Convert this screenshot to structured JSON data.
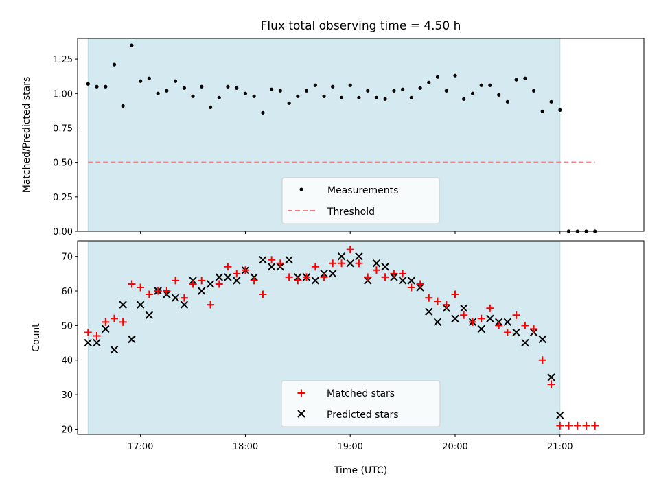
{
  "chart_data": [
    {
      "type": "scatter",
      "panel": "top",
      "title": "Flux total observing time = 4.50 h",
      "xlabel": "",
      "ylabel": "Matched/Predicted stars",
      "xlim": [
        -0.6,
        4.8
      ],
      "ylim": [
        0.0,
        1.4
      ],
      "yticks": [
        0.0,
        0.25,
        0.5,
        0.75,
        1.0,
        1.25
      ],
      "ytick_labels": [
        "0.00",
        "0.25",
        "0.50",
        "0.75",
        "1.00",
        "1.25"
      ],
      "xticks": [
        0,
        1,
        2,
        3,
        4
      ],
      "shaded_span": {
        "x_start": -0.5,
        "x_end": 4.0,
        "color": "#d4eaf0"
      },
      "legend": {
        "position": "lower-center",
        "entries": [
          "Measurements",
          "Threshold"
        ]
      },
      "series": [
        {
          "name": "Measurements",
          "marker": "dot",
          "color": "#000000",
          "x": [
            -0.5,
            -0.417,
            -0.333,
            -0.25,
            -0.167,
            -0.083,
            0.0,
            0.083,
            0.167,
            0.25,
            0.333,
            0.417,
            0.5,
            0.583,
            0.667,
            0.75,
            0.833,
            0.917,
            1.0,
            1.083,
            1.167,
            1.25,
            1.333,
            1.417,
            1.5,
            1.583,
            1.667,
            1.75,
            1.833,
            1.917,
            2.0,
            2.083,
            2.167,
            2.25,
            2.333,
            2.417,
            2.5,
            2.583,
            2.667,
            2.75,
            2.833,
            2.917,
            3.0,
            3.083,
            3.167,
            3.25,
            3.333,
            3.417,
            3.5,
            3.583,
            3.667,
            3.75,
            3.833,
            3.917,
            4.0,
            4.083,
            4.167,
            4.25,
            4.333
          ],
          "y": [
            1.07,
            1.05,
            1.05,
            1.21,
            0.91,
            1.35,
            1.09,
            1.11,
            1.0,
            1.02,
            1.09,
            1.04,
            0.98,
            1.05,
            0.9,
            0.97,
            1.05,
            1.04,
            1.0,
            0.98,
            0.86,
            1.03,
            1.02,
            0.93,
            0.98,
            1.02,
            1.06,
            0.98,
            1.05,
            0.97,
            1.06,
            0.97,
            1.02,
            0.97,
            0.96,
            1.02,
            1.03,
            0.97,
            1.04,
            1.08,
            1.12,
            1.02,
            1.13,
            0.96,
            1.0,
            1.06,
            1.06,
            0.99,
            0.94,
            1.1,
            1.11,
            1.02,
            0.87,
            0.94,
            0.88,
            0.0,
            0.0,
            0.0,
            0.0
          ]
        },
        {
          "name": "Threshold",
          "style": "dashed",
          "color": "#f08080",
          "x": [
            -0.5,
            4.333
          ],
          "y": [
            0.5,
            0.5
          ]
        }
      ]
    },
    {
      "type": "scatter",
      "panel": "bottom",
      "title": "",
      "xlabel": "Time (UTC)",
      "ylabel": "Count",
      "xlim": [
        -0.6,
        4.8
      ],
      "ylim": [
        18.5,
        74.5
      ],
      "yticks": [
        20,
        30,
        40,
        50,
        60,
        70
      ],
      "ytick_labels": [
        "20",
        "30",
        "40",
        "50",
        "60",
        "70"
      ],
      "xticks": [
        0,
        1,
        2,
        3,
        4
      ],
      "xtick_labels": [
        "17:00",
        "18:00",
        "19:00",
        "20:00",
        "21:00"
      ],
      "shaded_span": {
        "x_start": -0.5,
        "x_end": 4.0,
        "color": "#d4eaf0"
      },
      "legend": {
        "position": "lower-center",
        "entries": [
          "Matched stars",
          "Predicted stars"
        ]
      },
      "series": [
        {
          "name": "Matched stars",
          "marker": "plus",
          "color": "#ff0000",
          "x": [
            -0.5,
            -0.417,
            -0.333,
            -0.25,
            -0.167,
            -0.083,
            0.0,
            0.083,
            0.167,
            0.25,
            0.333,
            0.417,
            0.5,
            0.583,
            0.667,
            0.75,
            0.833,
            0.917,
            1.0,
            1.083,
            1.167,
            1.25,
            1.333,
            1.417,
            1.5,
            1.583,
            1.667,
            1.75,
            1.833,
            1.917,
            2.0,
            2.083,
            2.167,
            2.25,
            2.333,
            2.417,
            2.5,
            2.583,
            2.667,
            2.75,
            2.833,
            2.917,
            3.0,
            3.083,
            3.167,
            3.25,
            3.333,
            3.417,
            3.5,
            3.583,
            3.667,
            3.75,
            3.833,
            3.917,
            4.0,
            4.083,
            4.167,
            4.25,
            4.333
          ],
          "y": [
            48,
            47,
            51,
            52,
            51,
            62,
            61,
            59,
            60,
            60,
            63,
            58,
            62,
            63,
            56,
            62,
            67,
            65,
            66,
            63,
            59,
            69,
            68,
            64,
            63,
            64,
            67,
            64,
            68,
            68,
            72,
            68,
            64,
            66,
            64,
            65,
            65,
            61,
            62,
            58,
            57,
            56,
            59,
            53,
            51,
            52,
            55,
            50,
            48,
            53,
            50,
            49,
            40,
            33,
            21,
            21,
            21,
            21,
            21
          ]
        },
        {
          "name": "Predicted stars",
          "marker": "x",
          "color": "#000000",
          "x": [
            -0.5,
            -0.417,
            -0.333,
            -0.25,
            -0.167,
            -0.083,
            0.0,
            0.083,
            0.167,
            0.25,
            0.333,
            0.417,
            0.5,
            0.583,
            0.667,
            0.75,
            0.833,
            0.917,
            1.0,
            1.083,
            1.167,
            1.25,
            1.333,
            1.417,
            1.5,
            1.583,
            1.667,
            1.75,
            1.833,
            1.917,
            2.0,
            2.083,
            2.167,
            2.25,
            2.333,
            2.417,
            2.5,
            2.583,
            2.667,
            2.75,
            2.833,
            2.917,
            3.0,
            3.083,
            3.167,
            3.25,
            3.333,
            3.417,
            3.5,
            3.583,
            3.667,
            3.75,
            3.833,
            3.917,
            4.0
          ],
          "y": [
            45,
            45,
            49,
            43,
            56,
            46,
            56,
            53,
            60,
            59,
            58,
            56,
            63,
            60,
            62,
            64,
            64,
            63,
            66,
            64,
            69,
            67,
            67,
            69,
            64,
            64,
            63,
            65,
            65,
            70,
            68,
            70,
            63,
            68,
            67,
            64,
            63,
            63,
            61,
            54,
            51,
            55,
            52,
            55,
            51,
            49,
            52,
            51,
            51,
            48,
            45,
            48,
            46,
            35,
            24
          ]
        }
      ]
    }
  ]
}
